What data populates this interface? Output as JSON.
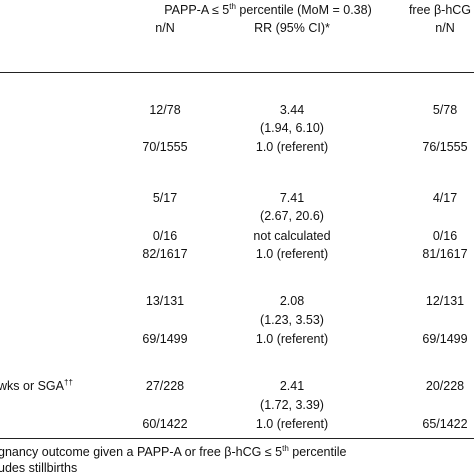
{
  "header": {
    "group1": [
      "PAPP-A ≤ 5",
      "th",
      " percentile (MoM = 0.38)"
    ],
    "group2": "free β-hCG",
    "col1": "n/N",
    "col2": "RR (95% CI)*",
    "col3": "n/N"
  },
  "rows": [
    {
      "n": "12/78",
      "rr": "3.44",
      "n2": "5/78"
    },
    {
      "rr": "(1.94, 6.10)"
    },
    {
      "n": "70/1555",
      "rr": "1.0 (referent)",
      "n2": "76/1555"
    },
    {
      "n": "5/17",
      "rr": "7.41",
      "n2": "4/17"
    },
    {
      "rr": "(2.67, 20.6)"
    },
    {
      "n": "0/16",
      "rr": "not calculated",
      "n2": "0/16"
    },
    {
      "n": "82/1617",
      "rr": "1.0 (referent)",
      "n2": "81/1617"
    },
    {
      "n": "13/131",
      "rr": "2.08",
      "n2": "12/131"
    },
    {
      "rr": "(1.23, 3.53)"
    },
    {
      "n": "69/1499",
      "rr": "1.0 (referent)",
      "n2": "69/1499"
    },
    {
      "label": [
        "wks or SGA",
        "††"
      ],
      "n": "27/228",
      "rr": "2.41",
      "n2": "20/228"
    },
    {
      "rr": "(1.72, 3.39)"
    },
    {
      "n": "60/1422",
      "rr": "1.0 (referent)",
      "n2": "65/1422"
    }
  ],
  "footnotes": [
    [
      "gnancy outcome given a PAPP-A or free β-hCG ≤ 5",
      "th",
      " percentile"
    ],
    [
      "udes stillbirths"
    ]
  ]
}
